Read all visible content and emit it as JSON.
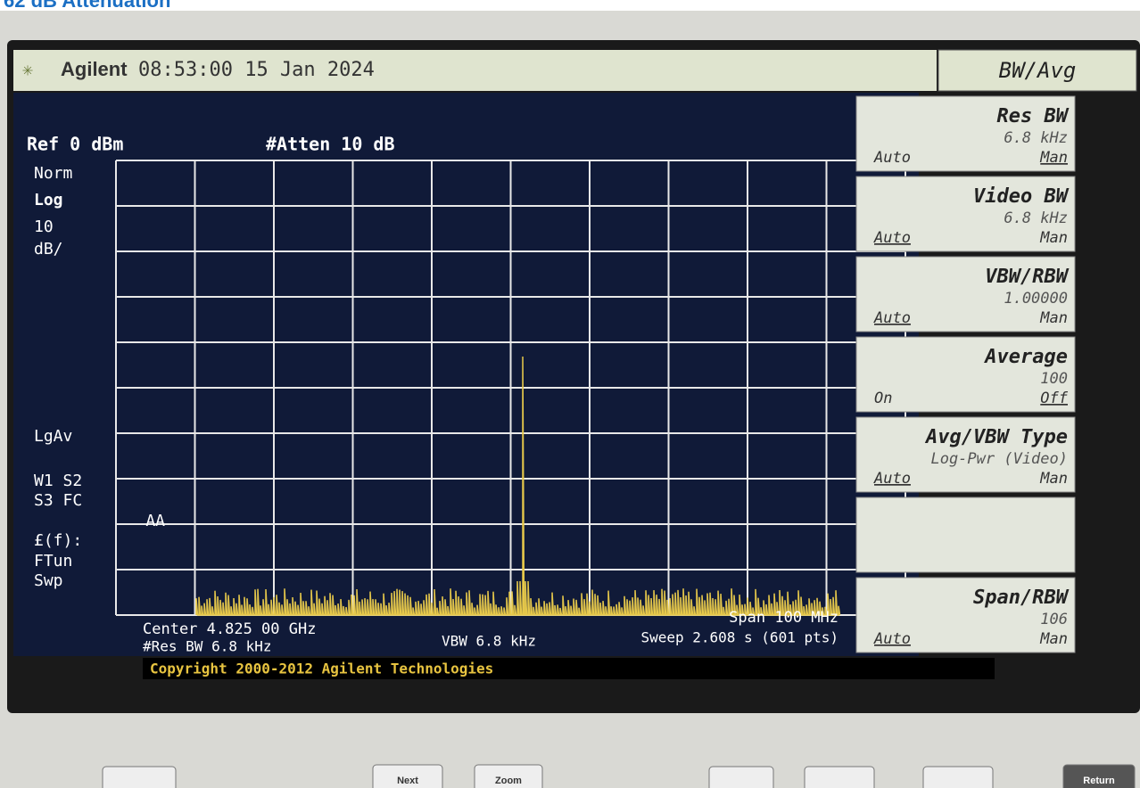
{
  "header": {
    "caption": "62 dB Attenuation"
  },
  "title_bar": {
    "brand": "Agilent",
    "datetime": "08:53:00  15 Jan 2024",
    "menu": "BW/Avg"
  },
  "screen": {
    "ref": "Ref 0 dBm",
    "atten": "#Atten 10 dB",
    "left_labels": [
      "Norm",
      "Log",
      "10",
      "dB/",
      "LgAv",
      "W1  S2",
      "S3  FC",
      "AA",
      "£(f):",
      "FTun",
      "Swp"
    ],
    "status": {
      "center": "Center 4.825 00 GHz",
      "span": "Span 100 MHz",
      "res_bw": "#Res BW 6.8 kHz",
      "vbw": "VBW 6.8 kHz",
      "sweep": "Sweep 2.608 s (601 pts)"
    },
    "copyright": "Copyright 2000-2012 Agilent Technologies"
  },
  "softkeys": [
    {
      "title": "Res BW",
      "value": "6.8 kHz",
      "left": "Auto",
      "right": "Man"
    },
    {
      "title": "Video BW",
      "value": "6.8 kHz",
      "left": "Auto",
      "right": "Man"
    },
    {
      "title": "VBW/RBW",
      "value": "1.00000",
      "left": "Auto",
      "right": "Man"
    },
    {
      "title": "Average",
      "value": "100",
      "left": "On",
      "right": "Off"
    },
    {
      "title": "Avg/VBW Type",
      "value": "Log-Pwr (Video)",
      "left": "Auto",
      "right": "Man"
    },
    {
      "title": "Span/RBW",
      "value": "106",
      "left": "Auto",
      "right": "Man"
    }
  ],
  "buttons": [
    "Next",
    "Zoom",
    "Return"
  ]
}
